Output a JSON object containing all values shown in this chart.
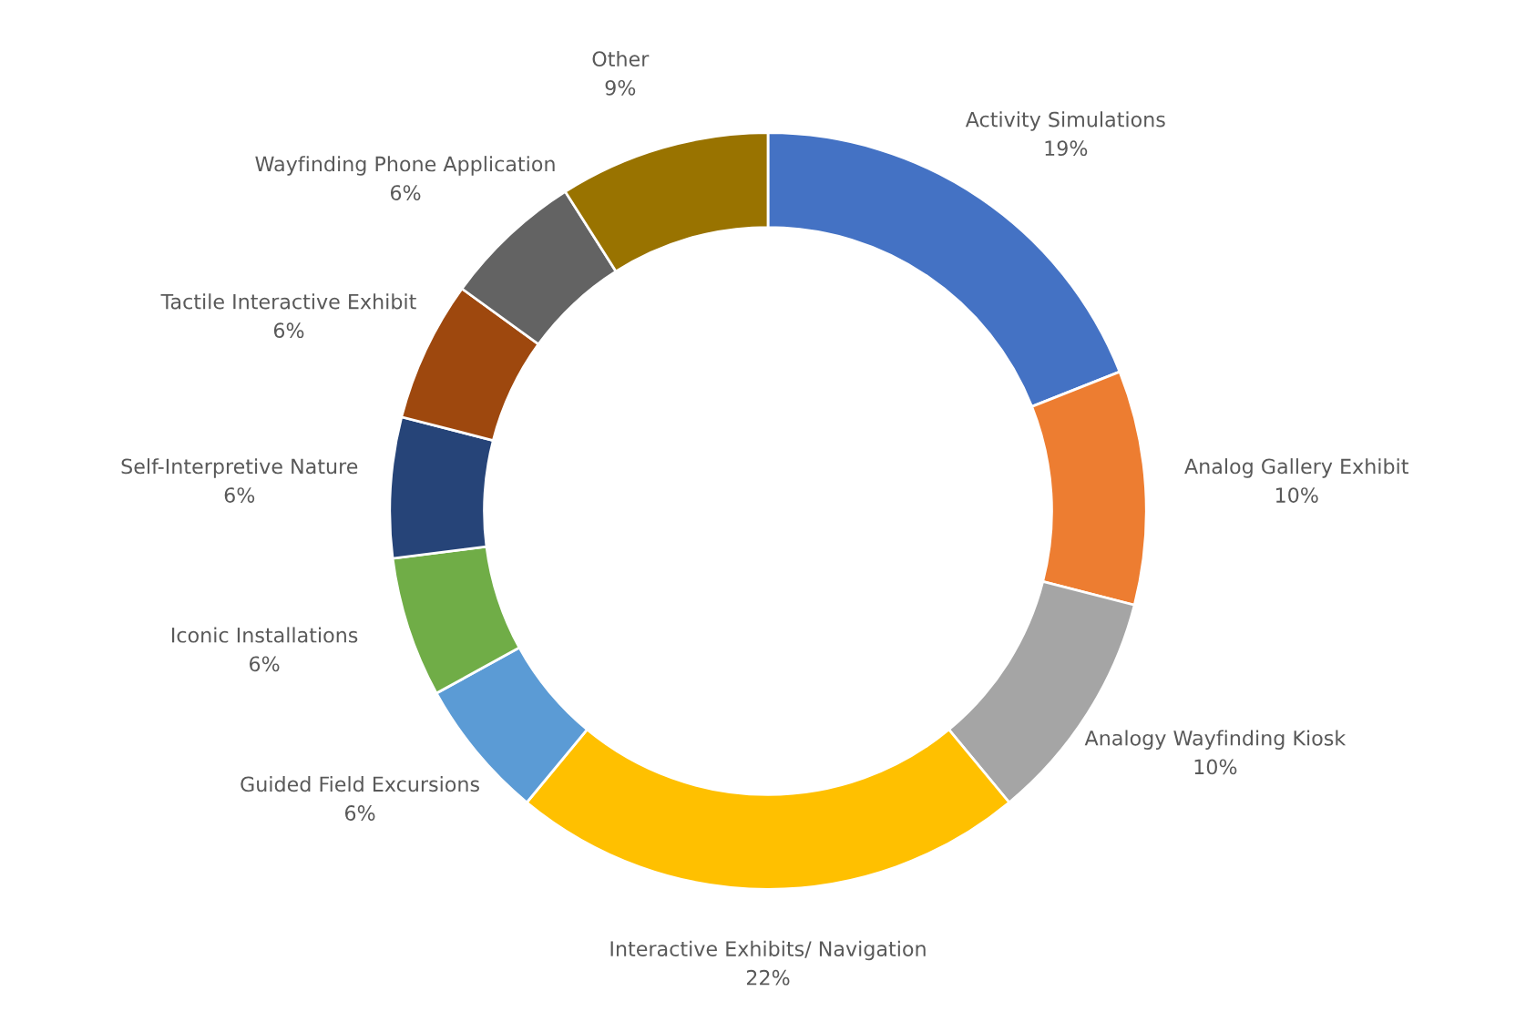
{
  "chart_data": {
    "type": "donut",
    "categories": [
      "Activity Simulations",
      "Analog Gallery Exhibit",
      "Analogy Wayfinding Kiosk",
      "Interactive Exhibits/ Navigation",
      "Guided Field Excursions",
      "Iconic Installations",
      "Self-Interpretive Nature",
      "Tactile Interactive Exhibit",
      "Wayfinding Phone Application",
      "Other"
    ],
    "values": [
      19,
      10,
      10,
      22,
      6,
      6,
      6,
      6,
      6,
      9
    ],
    "value_labels": [
      "19%",
      "10%",
      "10%",
      "22%",
      "6%",
      "6%",
      "6%",
      "6%",
      "6%",
      "9%"
    ],
    "colors": [
      "#4472c4",
      "#ed7d31",
      "#a5a5a5",
      "#ffc000",
      "#5b9bd5",
      "#70ad47",
      "#264478",
      "#9e480e",
      "#636363",
      "#997300"
    ],
    "legend": false
  }
}
